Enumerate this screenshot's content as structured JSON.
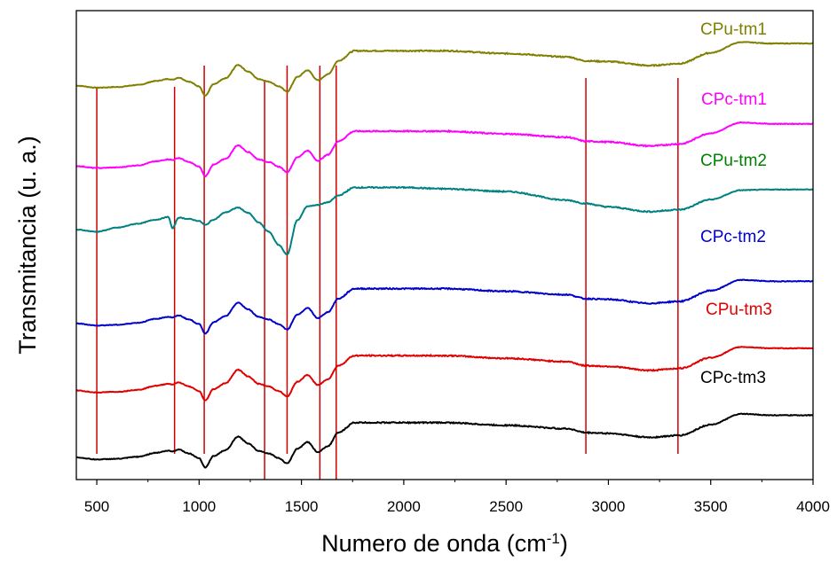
{
  "chart_data": {
    "type": "line",
    "xlabel": "Numero de onda (cm",
    "xlabel_sup": "-1",
    "xlabel_close": ")",
    "ylabel": "Transmitancia (u. a.)",
    "xlim": [
      400,
      4000
    ],
    "ylim": [
      0,
      7
    ],
    "grid": false,
    "y_ticks_shown": false,
    "x_ticks": [
      500,
      1000,
      1500,
      2000,
      2500,
      3000,
      3500,
      4000
    ],
    "x_tick_labels": [
      "500",
      "1000",
      "1500",
      "2000",
      "2500",
      "3000",
      "3500",
      "4000"
    ],
    "reference_lines_x": [
      500,
      880,
      1025,
      1320,
      1430,
      1590,
      1670,
      2890,
      3340
    ],
    "shape_x": [
      400,
      500,
      600,
      700,
      790,
      850,
      870,
      900,
      950,
      1000,
      1030,
      1070,
      1130,
      1190,
      1240,
      1290,
      1340,
      1390,
      1430,
      1480,
      1530,
      1580,
      1630,
      1680,
      1760,
      2000,
      2200,
      2500,
      2800,
      2890,
      3000,
      3200,
      3350,
      3500,
      3650,
      3800,
      4000
    ],
    "shape_y": [
      0.03,
      0.0,
      0.01,
      0.04,
      0.1,
      0.13,
      0.12,
      0.15,
      0.09,
      0.02,
      -0.12,
      0.05,
      0.14,
      0.34,
      0.24,
      0.13,
      0.09,
      0.02,
      -0.06,
      0.16,
      0.26,
      0.11,
      0.2,
      0.4,
      0.55,
      0.55,
      0.55,
      0.51,
      0.46,
      0.4,
      0.39,
      0.33,
      0.36,
      0.52,
      0.68,
      0.66,
      0.66
    ],
    "tm2_shape_y": [
      0.03,
      0.0,
      0.06,
      0.12,
      0.18,
      0.22,
      0.05,
      0.21,
      0.19,
      0.16,
      0.1,
      0.18,
      0.29,
      0.36,
      0.28,
      0.14,
      0.0,
      -0.2,
      -0.34,
      0.17,
      0.38,
      0.4,
      0.44,
      0.54,
      0.66,
      0.66,
      0.64,
      0.6,
      0.47,
      0.42,
      0.37,
      0.3,
      0.33,
      0.48,
      0.62,
      0.63,
      0.63
    ],
    "series": [
      {
        "name": "CPu-tm1",
        "color": "#808000",
        "offset": 5.85
      },
      {
        "name": "CPc-tm1",
        "color": "#ff00ff",
        "offset": 4.65
      },
      {
        "name": "CPu-tm2",
        "color": "#008000",
        "line_color": "#008080",
        "offset": 3.7,
        "profile": "tm2"
      },
      {
        "name": "CPc-tm2",
        "color": "#0000cc",
        "offset": 2.3
      },
      {
        "name": "CPu-tm3",
        "color": "#e00000",
        "offset": 1.3
      },
      {
        "name": "CPc-tm3",
        "color": "#000000",
        "offset": 0.3
      }
    ],
    "reference_line_color": "#cc0000"
  }
}
